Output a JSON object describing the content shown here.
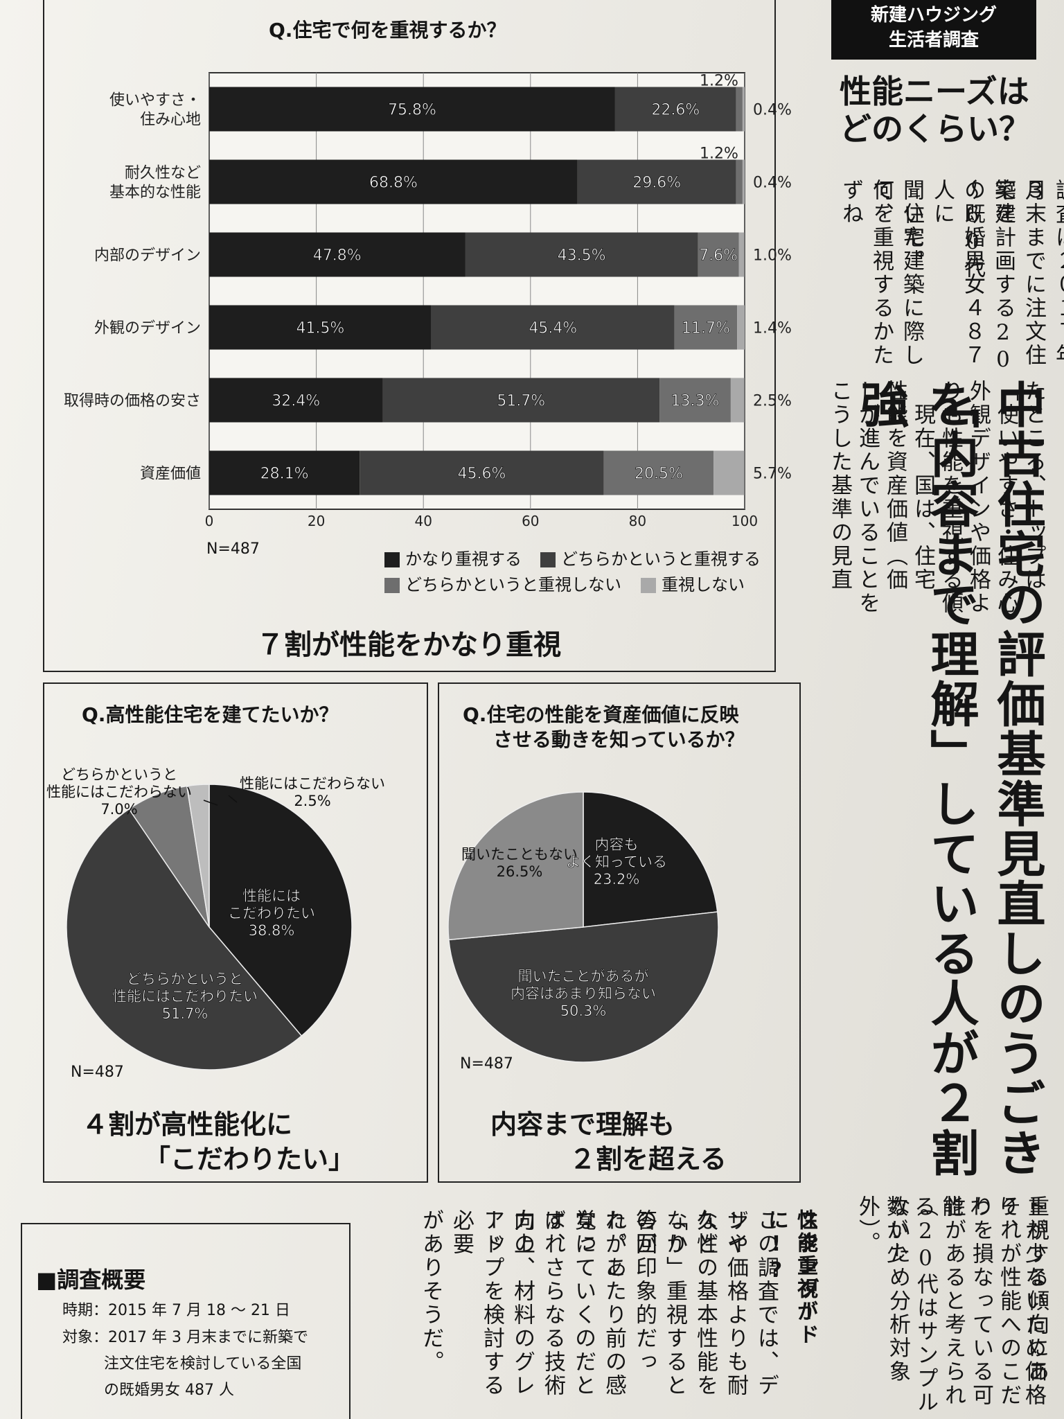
{
  "chart_data": [
    {
      "type": "bar",
      "orientation": "horizontal",
      "stacked": true,
      "title": "Q.住宅で何を重視するか？",
      "categories": [
        "使いやすさ・\n住み心地",
        "耐久性など\n基本的な性能",
        "内部のデザイン",
        "外観のデザイン",
        "取得時の価格の安さ",
        "資産価値"
      ],
      "series": [
        {
          "name": "かなり重視する",
          "color": "#1e1e1e",
          "values": [
            75.8,
            68.8,
            47.8,
            41.5,
            32.4,
            28.1
          ],
          "labels": [
            "75.8%",
            "68.8%",
            "47.8%",
            "41.5%",
            "32.4%",
            "28.1%"
          ]
        },
        {
          "name": "どちらかというと重視する",
          "color": "#3f3f3f",
          "values": [
            22.6,
            29.6,
            43.5,
            45.4,
            51.7,
            45.6
          ],
          "labels": [
            "22.6%",
            "29.6%",
            "43.5%",
            "45.4%",
            "51.7%",
            "45.6%"
          ]
        },
        {
          "name": "どちらかというと重視しない",
          "color": "#6e6e6e",
          "values": [
            1.2,
            1.2,
            7.6,
            11.7,
            13.3,
            20.5
          ],
          "labels": [
            "1.2%",
            "1.2%",
            "7.6%",
            "11.7%",
            "13.3%",
            "20.5%"
          ]
        },
        {
          "name": "重視しない",
          "color": "#a9a9a9",
          "values": [
            0.4,
            0.4,
            1.0,
            1.4,
            2.5,
            5.7
          ],
          "labels": [
            "0.4%",
            "0.4%",
            "1.0%",
            "1.4%",
            "2.5%",
            "5.7%"
          ]
        }
      ],
      "xlim": [
        0,
        100
      ],
      "xticks": [
        "0",
        "20",
        "40",
        "60",
        "80",
        "100"
      ],
      "note": "N=487",
      "legend": "bottom-right",
      "summary": "７割が性能をかなり重視"
    },
    {
      "type": "pie",
      "title": "Q.高性能住宅を建てたいか？",
      "slices": [
        {
          "name": "性能には\nこだわりたい",
          "value": 38.8,
          "label": "38.8%",
          "color": "#1c1c1c"
        },
        {
          "name": "どちらかというと\n性能にはこだわりたい",
          "value": 51.7,
          "label": "51.7%",
          "color": "#3c3c3c"
        },
        {
          "name": "どちらかというと\n性能にはこだわらない",
          "value": 7.0,
          "label": "7.0%",
          "color": "#777777"
        },
        {
          "name": "性能にはこだわらない",
          "value": 2.5,
          "label": "2.5%",
          "color": "#bdbdbd"
        }
      ],
      "note": "N=487",
      "summary_lines": [
        "４割が高性能化に",
        "「こだわりたい」"
      ]
    },
    {
      "type": "pie",
      "title_lines": [
        "Q.住宅の性能を資産価値に反映",
        "させる動きを知っているか？"
      ],
      "slices": [
        {
          "name": "内容も\nよく知っている",
          "value": 23.2,
          "label": "23.2%",
          "color": "#1c1c1c"
        },
        {
          "name": "聞いたことがあるが\n内容はあまり知らない",
          "value": 50.3,
          "label": "50.3%",
          "color": "#3c3c3c"
        },
        {
          "name": "聞いたこともない",
          "value": 26.5,
          "label": "26.5%",
          "color": "#8a8a8a"
        }
      ],
      "note": "N=487",
      "summary_lines": [
        "内容まで理解も",
        "２割を超える"
      ]
    }
  ],
  "article": {
    "header_badge_lines": [
      "新建ハウジング",
      "生活者調査"
    ],
    "subtitle_lines": [
      "性能ニーズは",
      "どのくらい？"
    ],
    "headline_columns": [
      "中古住宅の評価基準見直しのうごきを",
      "「内容まで理解」している人が２割強"
    ],
    "body_columns_top": [
      "調査は２０１７年３",
      "月末までに注文住宅建",
      "築を計画する20～60代",
      "の既婚男女４８７人に",
      "聞いた。",
      "　住宅建築に際して、",
      "何を重視するかたずね"
    ],
    "body_columns_mid": [
      "たところ、トップは",
      "「使いやすさ・住み心",
      "外観デザインや価格よ",
      "りも性能を重視する傾",
      "　現在、国は、住宅",
      "性能を資産価値（価",
      "しが進んでいることを",
      "こうした基準の見直"
    ],
    "body_columns_bottom": [
      "トが少ないため価格",
      "重視する傾向にあり、",
      "それが性能へのこだわ",
      "りを損なっている可能",
      "性があると考えられる",
      "（20代はサンプル数が少",
      "ないため分析対象外）。"
    ],
    "sub_head": [
      "性能重視が",
      "スタンダードに!?"
    ],
    "body_columns_final": [
      "この調査では、デザイ",
      "ンや価格よりも耐久性",
      "などの基本性能を「か",
      "なり」重視するとの回",
      "答が印象的だった。こ",
      "れがあたり前の感覚に",
      "なっていくのだとすれ",
      "ば、さらなる技術力の",
      "向上、材料のグレード",
      "アップを検討する必要",
      "がありそうだ。"
    ]
  },
  "survey": {
    "heading": "■調査概要",
    "period": "時期：2015 年 7 月 18 ～ 21 日",
    "target_lines": [
      "対象：2017 年 3 月末までに新築で",
      "注文住宅を検討している全国",
      "の既婚男女 487 人"
    ]
  }
}
